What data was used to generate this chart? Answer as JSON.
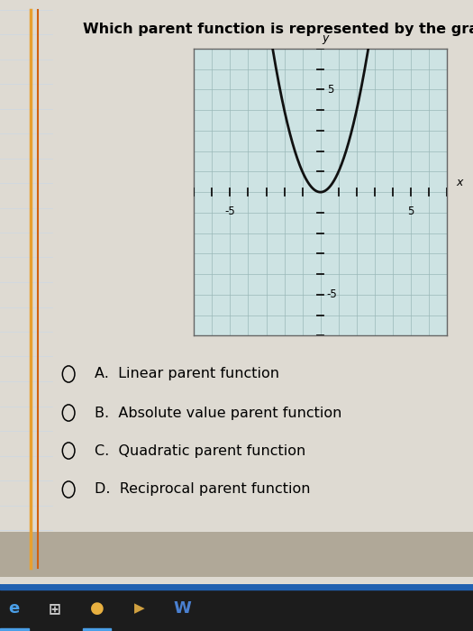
{
  "title": "Which parent function is represented by the graph?",
  "title_fontsize": 11.5,
  "title_fontweight": "bold",
  "graph_bg_color": "#cde3e3",
  "page_bg_color": "#dedad2",
  "graph_xlim": [
    -7,
    7
  ],
  "graph_ylim": [
    -7,
    7
  ],
  "curve_color": "#111111",
  "curve_linewidth": 2.0,
  "axis_color": "#111111",
  "axis_linewidth": 1.3,
  "grid_color": "#9ab8b8",
  "grid_linewidth": 0.5,
  "options": [
    {
      "letter": "A",
      "text": "Linear parent function"
    },
    {
      "letter": "B",
      "text": "Absolute value parent function"
    },
    {
      "letter": "C",
      "text": "Quadratic parent function"
    },
    {
      "letter": "D",
      "text": "Reciprocal parent function"
    }
  ],
  "options_fontsize": 11.5,
  "taskbar_color": "#1c1c1c",
  "axis_label_x": "x",
  "axis_label_y": "y",
  "border_line_color1": "#e8a030",
  "border_line_color2": "#d06010",
  "graph_border_color": "#666666",
  "tick_label_fontsize": 8.5
}
